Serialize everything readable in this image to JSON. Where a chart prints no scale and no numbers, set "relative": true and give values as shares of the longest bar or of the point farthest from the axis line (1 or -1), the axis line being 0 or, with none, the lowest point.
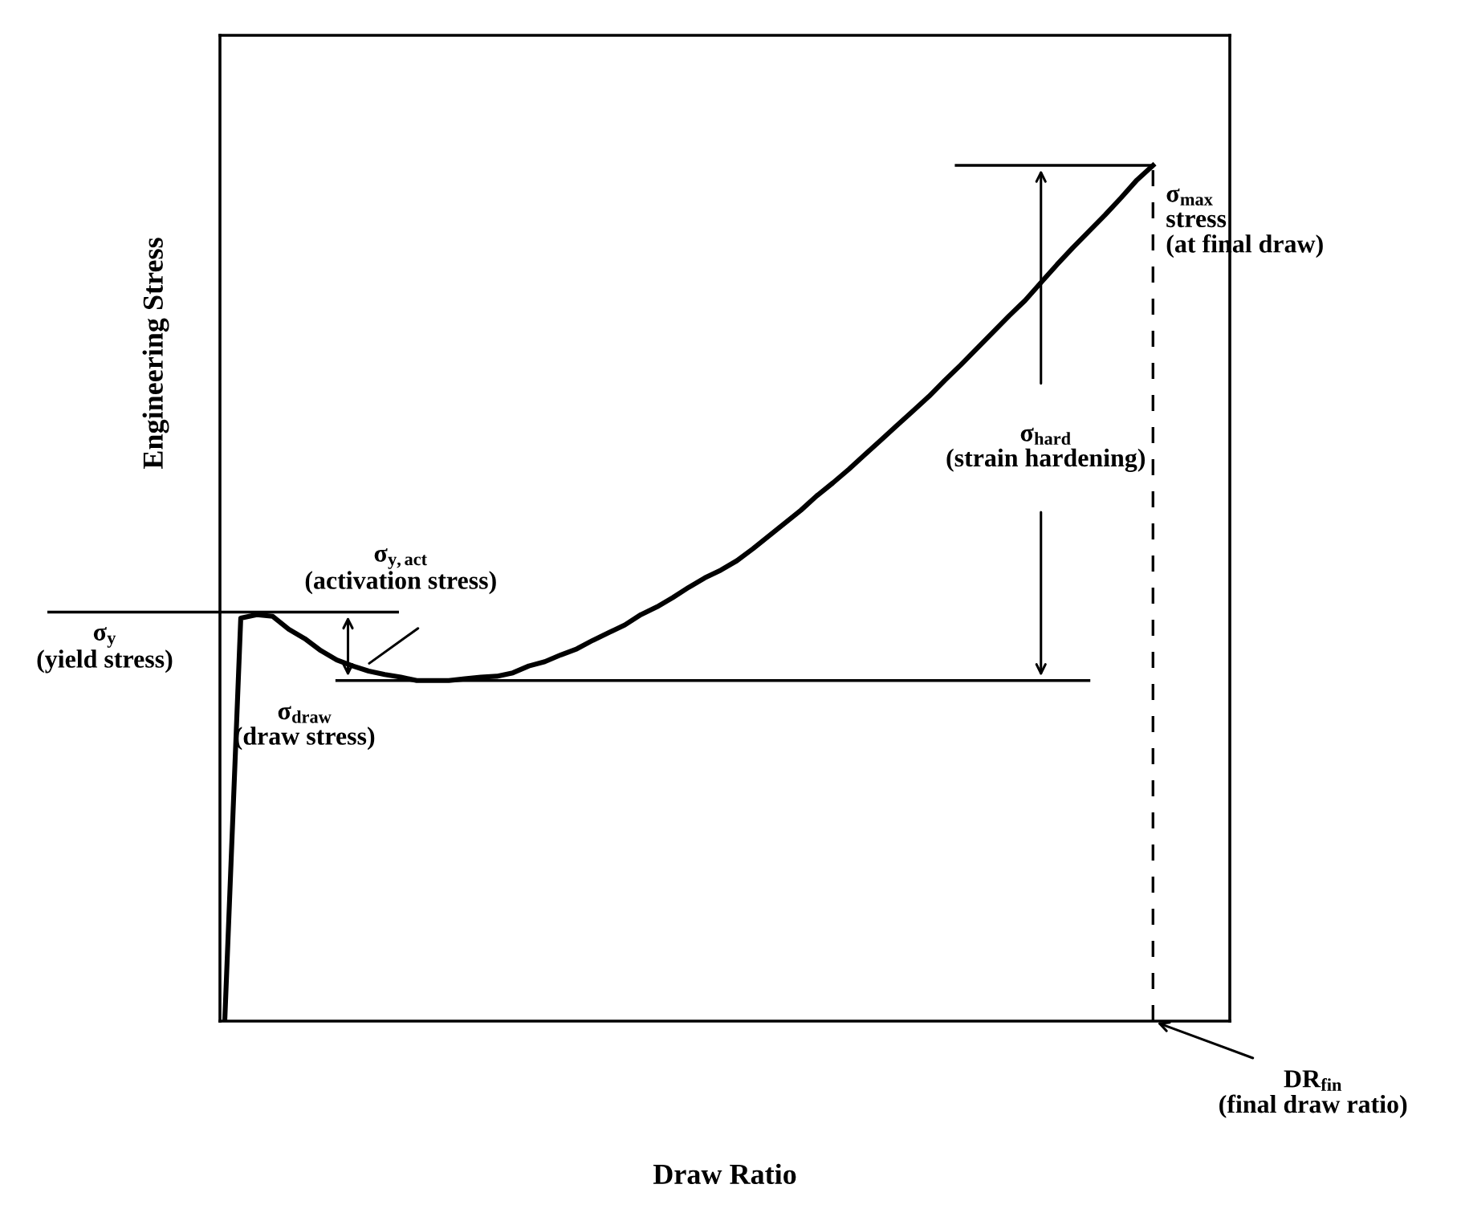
{
  "chart_data": {
    "type": "line",
    "relative": true,
    "xlabel": "Draw Ratio",
    "ylabel": "Engineering Stress",
    "categories": [
      null,
      null,
      null,
      null,
      null,
      null,
      null,
      null,
      null,
      null,
      null,
      null,
      null,
      null,
      null,
      null,
      null,
      null,
      null,
      null,
      null,
      null,
      null,
      null,
      null,
      null,
      null,
      null,
      null,
      null,
      null,
      null,
      null,
      null,
      null,
      null,
      null,
      null,
      null,
      null,
      null,
      null,
      null,
      null,
      null,
      null,
      null,
      null,
      null,
      null,
      null,
      null,
      null,
      null,
      null,
      null,
      null,
      null,
      null
    ],
    "series": [
      {
        "color": "#000000",
        "values": [
          0,
          0.471,
          0.475,
          0.473,
          0.458,
          0.447,
          0.433,
          0.422,
          0.415,
          0.409,
          0.405,
          0.402,
          0.398,
          0.398,
          0.398,
          0.4,
          0.402,
          0.403,
          0.407,
          0.415,
          0.42,
          0.428,
          0.435,
          0.445,
          0.454,
          0.463,
          0.475,
          0.484,
          0.495,
          0.507,
          0.518,
          0.527,
          0.538,
          0.552,
          0.567,
          0.582,
          0.597,
          0.614,
          0.629,
          0.645,
          0.662,
          0.679,
          0.696,
          0.713,
          0.73,
          0.749,
          0.767,
          0.786,
          0.805,
          0.824,
          0.842,
          0.863,
          0.884,
          0.904,
          0.923,
          0.942,
          0.962,
          0.983,
          1
        ]
      }
    ],
    "ref_lines": [
      {
        "axis": "y",
        "value": 0.478,
        "label": "σ$_{y}$\n(yield stress)"
      },
      {
        "axis": "y",
        "value": 0.398,
        "label": "σ$_{draw}$\n(draw stress)"
      },
      {
        "axis": "y",
        "value": 1,
        "label": "σ$_{max}$\nstress\n(at final draw)"
      }
    ],
    "annotations": [
      "σ$_{y,act}$\n(activation stress)",
      "σ$_{hard}$\n(strain hardening)",
      "DR$_{fin}$\n(final draw ratio)"
    ],
    "grid": false,
    "legend": false
  }
}
